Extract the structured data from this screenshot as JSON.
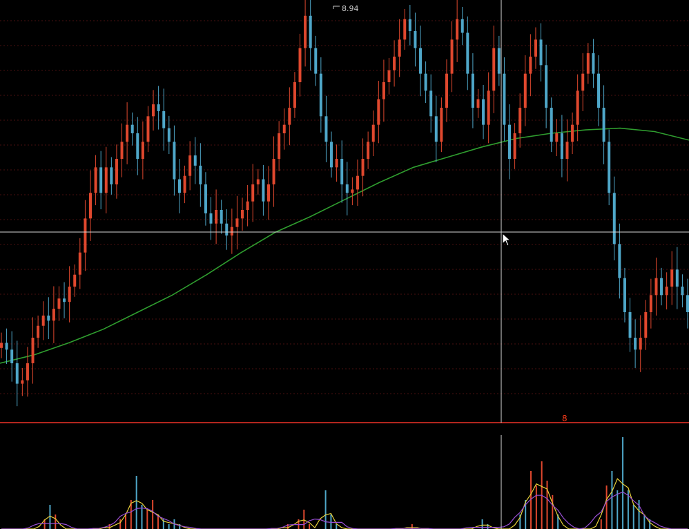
{
  "colors": {
    "background": "#000000",
    "up": "#e0482e",
    "down": "#4fa7c9",
    "ma": "#2f9e2f",
    "gridline": "#4a1010",
    "divider": "#b3261e",
    "crosshair": "#d8d8d8",
    "volume_ma1": "#e8d23a",
    "volume_ma2": "#9a4fd6"
  },
  "cursor": {
    "icon": "arrow-cursor-icon"
  },
  "chart_data": [
    {
      "type": "candlestick",
      "title": "",
      "high_marker": {
        "label": "8.94",
        "value": 8.94
      },
      "price_series": [
        7.02,
        6.98,
        6.9,
        6.78,
        6.8,
        6.9,
        7.05,
        7.12,
        7.18,
        7.15,
        7.22,
        7.28,
        7.26,
        7.35,
        7.42,
        7.55,
        7.75,
        7.9,
        8.05,
        7.9,
        8.05,
        7.95,
        8.1,
        8.2,
        8.3,
        8.25,
        8.1,
        8.2,
        8.35,
        8.42,
        8.38,
        8.28,
        8.2,
        7.98,
        7.9,
        8.0,
        8.12,
        8.06,
        7.95,
        7.78,
        7.72,
        7.8,
        7.72,
        7.65,
        7.7,
        7.75,
        7.8,
        7.85,
        7.95,
        7.98,
        7.85,
        7.95,
        8.1,
        8.25,
        8.3,
        8.4,
        8.55,
        8.75,
        8.94,
        8.75,
        8.6,
        8.35,
        8.2,
        8.05,
        8.1,
        7.95,
        7.9,
        7.92,
        8.0,
        8.1,
        8.2,
        8.3,
        8.45,
        8.55,
        8.62,
        8.7,
        8.8,
        8.92,
        8.85,
        8.75,
        8.6,
        8.5,
        8.35,
        8.2,
        8.4,
        8.6,
        8.8,
        8.92,
        8.84,
        8.6,
        8.4,
        8.45,
        8.3,
        8.5,
        8.75,
        8.6,
        8.3,
        8.1,
        8.25,
        8.4,
        8.6,
        8.7,
        8.8,
        8.65,
        8.4,
        8.2,
        8.25,
        8.1,
        8.2,
        8.3,
        8.5,
        8.6,
        8.72,
        8.6,
        8.4,
        8.2,
        7.9,
        7.6,
        7.4,
        7.2,
        7.05,
        6.98,
        7.05,
        7.2,
        7.3,
        7.4,
        7.3,
        7.35,
        7.45,
        7.35,
        7.3,
        7.2
      ],
      "moving_average": [
        6.9,
        6.95,
        7.02,
        7.1,
        7.2,
        7.3,
        7.42,
        7.55,
        7.67,
        7.76,
        7.86,
        7.96,
        8.05,
        8.11,
        8.17,
        8.22,
        8.25,
        8.27,
        8.28,
        8.26,
        8.21
      ],
      "y_range": [
        6.6,
        9.0
      ]
    },
    {
      "type": "bar",
      "title": "",
      "series_label": "8",
      "volume_spikes": [
        0,
        0,
        0,
        0,
        0,
        0,
        0,
        0,
        0.2,
        0.5,
        0.3,
        0,
        0,
        0,
        0,
        0,
        0,
        0,
        0,
        0,
        0.1,
        0,
        0.2,
        0.3,
        0.6,
        1.1,
        0.5,
        0.4,
        0.6,
        0.3,
        0.2,
        0.1,
        0.2,
        0.1,
        0,
        0,
        0,
        0,
        0,
        0,
        0,
        0,
        0,
        0,
        0,
        0,
        0,
        0,
        0,
        0,
        0,
        0,
        0,
        0.1,
        0,
        0.2,
        0.4,
        0.1,
        0,
        0,
        0.8,
        0.3,
        0.1,
        0,
        0,
        0,
        0,
        0,
        0,
        0,
        0,
        0,
        0,
        0,
        0,
        0,
        0.1,
        0,
        0,
        0,
        0,
        0,
        0,
        0,
        0,
        0,
        0,
        0,
        0,
        0.2,
        0.1,
        0,
        0,
        0,
        0,
        0,
        0.3,
        0.6,
        1.2,
        0.9,
        1.4,
        1.0,
        0.7,
        0.3,
        0,
        0,
        0,
        0,
        0,
        0,
        0,
        0.2,
        0.9,
        1.2,
        0.8,
        1.9,
        0.8,
        0.5,
        0.6,
        0.3,
        0.2,
        0,
        0,
        0,
        0,
        0,
        0,
        0
      ]
    }
  ]
}
